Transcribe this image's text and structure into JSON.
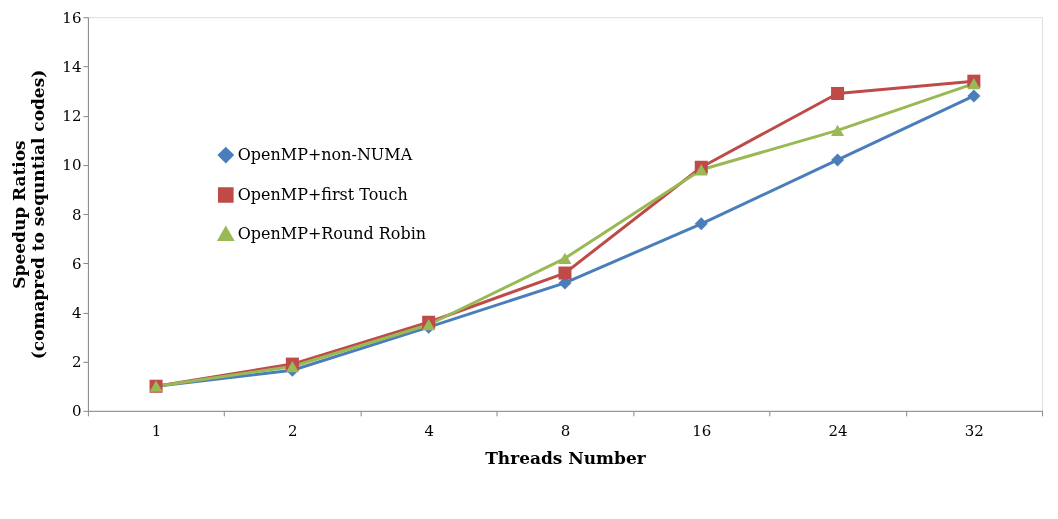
{
  "chart_data": {
    "type": "line",
    "xlabel": "Threads Number",
    "ylabel": "Speedup Ratios\n(comapred to sequntial codes)",
    "categories": [
      "1",
      "2",
      "4",
      "8",
      "16",
      "24",
      "32"
    ],
    "series": [
      {
        "name": "OpenMP+non-NUMA",
        "color": "#4a7ebb",
        "marker": "diamond",
        "values": [
          1.0,
          1.65,
          3.4,
          5.2,
          7.6,
          10.2,
          12.8
        ]
      },
      {
        "name": "OpenMP+first Touch",
        "color": "#be4b48",
        "marker": "square",
        "values": [
          1.0,
          1.9,
          3.6,
          5.6,
          9.9,
          12.9,
          13.4
        ]
      },
      {
        "name": "OpenMP+Round Robin",
        "color": "#98b954",
        "marker": "triangle",
        "values": [
          1.0,
          1.8,
          3.5,
          6.2,
          9.8,
          11.4,
          13.3
        ]
      }
    ],
    "ylim": [
      0,
      16
    ],
    "yticks": [
      0,
      2,
      4,
      6,
      8,
      10,
      12,
      14,
      16
    ],
    "grid": false,
    "legend": "top left",
    "line_style": "solid"
  }
}
